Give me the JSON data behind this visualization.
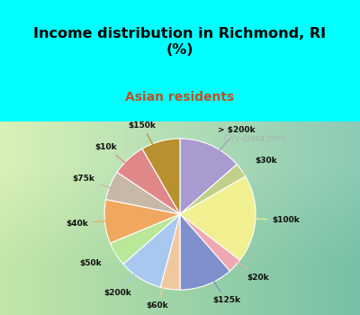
{
  "title": "Income distribution in Richmond, RI\n(%)",
  "subtitle": "Asian residents",
  "bg_cyan": "#00FFFF",
  "bg_chart_gradient_start": "#f0faf5",
  "bg_chart_gradient_end": "#b8e8c8",
  "watermark": "City-Data.com",
  "slices": [
    {
      "label": "> $200k",
      "value": 13,
      "color": "#a99ad0"
    },
    {
      "label": "$30k",
      "value": 3,
      "color": "#c0d08a"
    },
    {
      "label": "$100k",
      "value": 18,
      "color": "#f0f090"
    },
    {
      "label": "$20k",
      "value": 3,
      "color": "#f0a8b0"
    },
    {
      "label": "$125k",
      "value": 11,
      "color": "#8090cc"
    },
    {
      "label": "$60k",
      "value": 4,
      "color": "#f0c8a0"
    },
    {
      "label": "$200k",
      "value": 9,
      "color": "#a8c8f0"
    },
    {
      "label": "$50k",
      "value": 5,
      "color": "#b8e898"
    },
    {
      "label": "$40k",
      "value": 9,
      "color": "#f0a860"
    },
    {
      "label": "$75k",
      "value": 6,
      "color": "#c8b8a8"
    },
    {
      "label": "$10k",
      "value": 7,
      "color": "#e08888"
    },
    {
      "label": "$150k",
      "value": 8,
      "color": "#b89030"
    }
  ],
  "label_colors": [
    "#9090c0",
    "#b0c070",
    "#d0d070",
    "#e09090",
    "#7080b0",
    "#d0a870",
    "#90a8d0",
    "#a0d080",
    "#d09050",
    "#b0a090",
    "#d07070",
    "#a08020"
  ]
}
